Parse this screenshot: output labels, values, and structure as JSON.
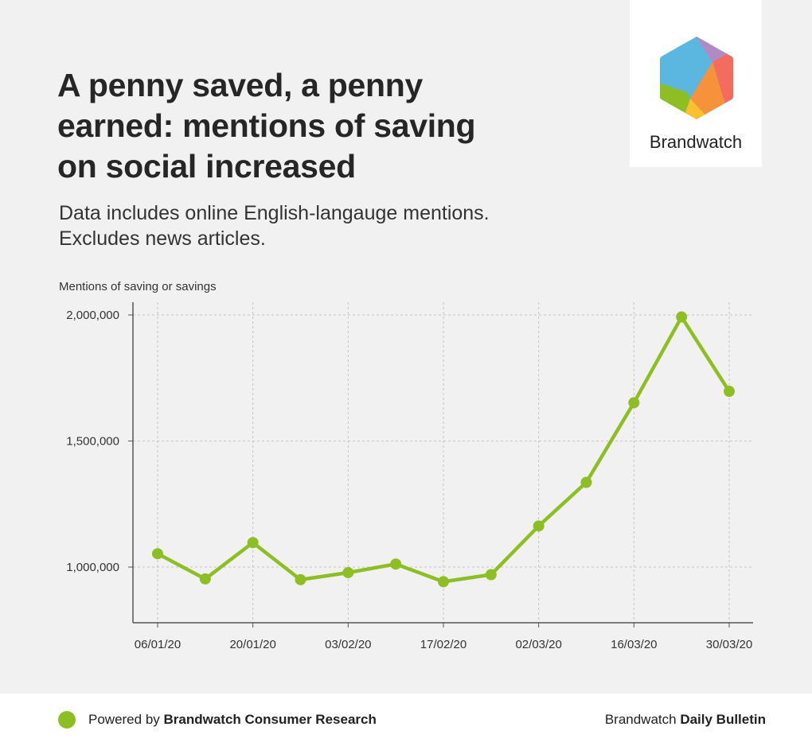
{
  "header": {
    "title": "A penny saved, a penny earned: mentions of saving on social increased",
    "subtitle": "Data includes online English-langauge mentions. Excludes news articles."
  },
  "logo": {
    "wordmark": "Brandwatch"
  },
  "colors": {
    "series": "#8dbf25",
    "grid": "#c4c4c4",
    "axis": "#555555"
  },
  "chart_data": {
    "type": "line",
    "ylabel": "Mentions of saving or savings",
    "xlabel": "",
    "x": [
      "06/01/20",
      "13/01/20",
      "20/01/20",
      "27/01/20",
      "03/02/20",
      "10/02/20",
      "17/02/20",
      "24/02/20",
      "02/03/20",
      "09/03/20",
      "16/03/20",
      "23/03/20",
      "30/03/20"
    ],
    "xticks": [
      "06/01/20",
      "20/01/20",
      "03/02/20",
      "17/02/20",
      "02/03/20",
      "16/03/20",
      "30/03/20"
    ],
    "yticks": [
      1000000,
      1500000,
      2000000
    ],
    "ytick_labels": [
      "1,000,000",
      "1,500,000",
      "2,000,000"
    ],
    "ylim": [
      780000,
      2050000
    ],
    "grid": true,
    "series": [
      {
        "values": [
          1053000,
          953000,
          1097000,
          950000,
          978000,
          1012000,
          942000,
          970000,
          1163000,
          1336000,
          1652000,
          1992000,
          1697000
        ]
      }
    ]
  },
  "footer": {
    "powered_prefix": "Powered by ",
    "powered_brand": "Brandwatch Consumer Research",
    "right_prefix": "Brandwatch ",
    "right_bold": "Daily Bulletin"
  }
}
